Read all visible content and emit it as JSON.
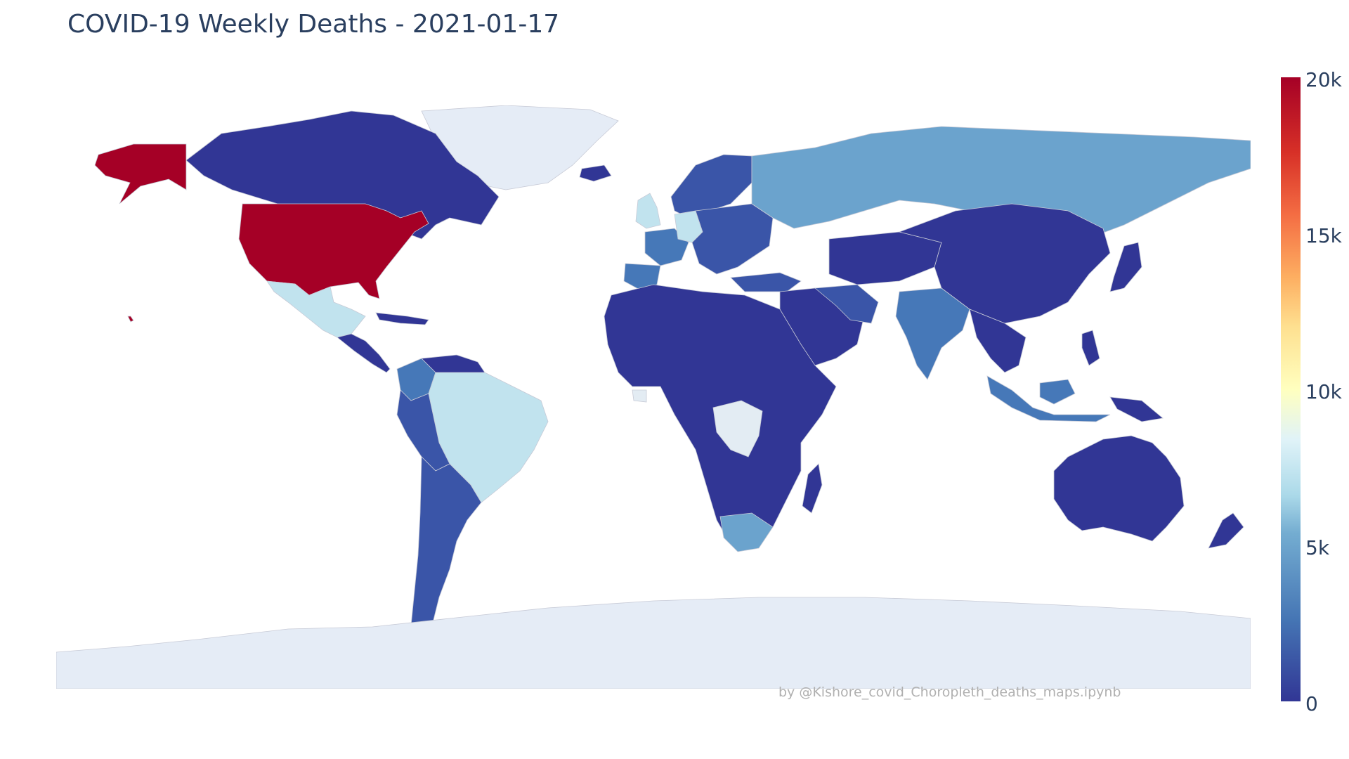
{
  "title": "COVID-19 Weekly Deaths - 2021-01-17",
  "credit": "by @Kishore_covid_Choropleth_deaths_maps.ipynb",
  "colorbar": {
    "ticks": [
      "0",
      "5k",
      "10k",
      "15k",
      "20k"
    ],
    "range": [
      0,
      20000
    ],
    "colorscale": "RdYlBu reversed"
  },
  "colors": {
    "very_low": "#313695",
    "low": "#3a55a8",
    "mid_low": "#4678b8",
    "mid": "#6ba3cd",
    "mid_high": "#c1e3ee",
    "high_light": "#e3ecf3",
    "very_high": "#a50026",
    "no_data": "#e5ecf6"
  },
  "map_data": {
    "type": "choropleth",
    "projection": "equirectangular",
    "regions": [
      {
        "name": "United States",
        "level": "very_high"
      },
      {
        "name": "Alaska",
        "level": "very_high"
      },
      {
        "name": "Canada",
        "level": "very_low"
      },
      {
        "name": "Greenland",
        "level": "no_data"
      },
      {
        "name": "Mexico",
        "level": "mid_high"
      },
      {
        "name": "Brazil",
        "level": "mid_high"
      },
      {
        "name": "Colombia",
        "level": "mid_low"
      },
      {
        "name": "Argentina",
        "level": "low"
      },
      {
        "name": "United Kingdom",
        "level": "mid_high"
      },
      {
        "name": "Germany",
        "level": "mid_high"
      },
      {
        "name": "France",
        "level": "mid_low"
      },
      {
        "name": "Russia",
        "level": "mid"
      },
      {
        "name": "China",
        "level": "very_low"
      },
      {
        "name": "India",
        "level": "mid_low"
      },
      {
        "name": "Indonesia",
        "level": "mid_low"
      },
      {
        "name": "South Africa",
        "level": "mid"
      },
      {
        "name": "DR Congo",
        "level": "high_light"
      },
      {
        "name": "Australia",
        "level": "very_low"
      },
      {
        "name": "Antarctica",
        "level": "no_data"
      }
    ]
  }
}
